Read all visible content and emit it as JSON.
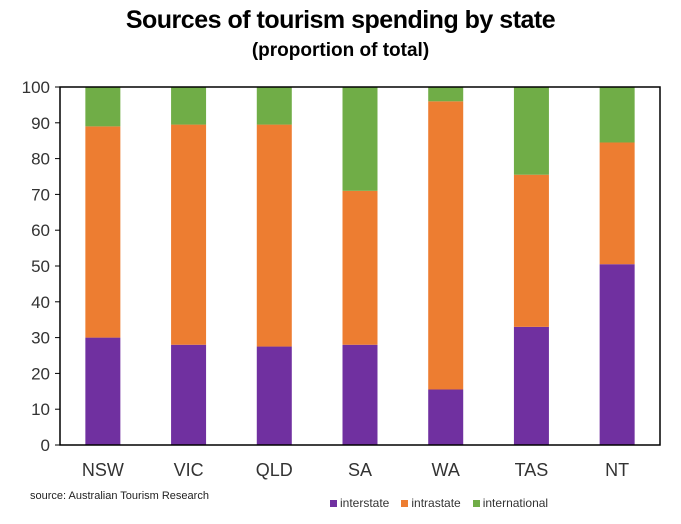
{
  "chart_data": {
    "type": "bar",
    "stacked": true,
    "title": "Sources of tourism spending by state",
    "subtitle": "(proportion  of total)",
    "categories": [
      "NSW",
      "VIC",
      "QLD",
      "SA",
      "WA",
      "TAS",
      "NT"
    ],
    "series": [
      {
        "name": "interstate",
        "color": "#7030A0",
        "values": [
          30,
          28,
          27.5,
          28,
          15.5,
          33,
          50.5
        ]
      },
      {
        "name": "intrastate",
        "color": "#ED7D31",
        "values": [
          59,
          61.5,
          62,
          43,
          80.5,
          42.5,
          34
        ]
      },
      {
        "name": "international",
        "color": "#70AD47",
        "values": [
          11,
          10.5,
          10.5,
          29,
          4,
          24.5,
          15.5
        ]
      }
    ],
    "ylim": [
      0,
      100
    ],
    "yticks": [
      0,
      10,
      20,
      30,
      40,
      50,
      60,
      70,
      80,
      90,
      100
    ],
    "grid": false,
    "legend": "bottom"
  },
  "source_note": "source:   Australian Tourism Research"
}
